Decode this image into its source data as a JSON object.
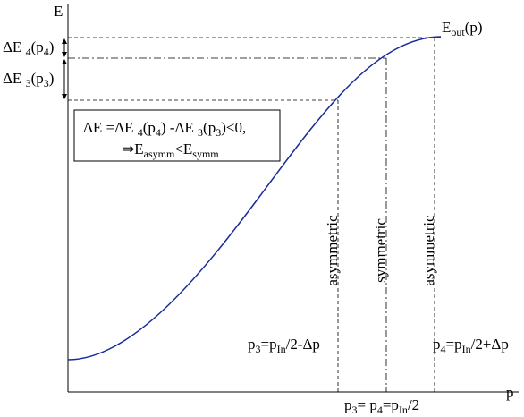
{
  "axes": {
    "y_label": "E",
    "x_label": "p"
  },
  "curve_label": [
    "E",
    "out",
    "(p)"
  ],
  "delta_e4": [
    "ΔE ",
    "4",
    "(p",
    "4",
    ")"
  ],
  "delta_e3": [
    "ΔE ",
    "3",
    "(p",
    "3",
    ")"
  ],
  "box": {
    "line1": [
      "ΔE =ΔE ",
      "4",
      "(p",
      "4",
      ") -ΔE ",
      "3",
      "(p",
      "3",
      ")<0,"
    ],
    "line2": [
      "⇒E",
      "asymm",
      "<E",
      "symm"
    ]
  },
  "vertical_labels": [
    "asymmetric",
    "symmetric",
    "asymmetric"
  ],
  "bottom": {
    "left": [
      "p",
      "3",
      "=p",
      "In",
      "/2-Δp"
    ],
    "right": [
      "p",
      "4",
      "=p",
      "In",
      "/2+Δp"
    ],
    "center": [
      "p",
      "3",
      "= p",
      "4",
      "=p",
      "In",
      "/2"
    ]
  }
}
